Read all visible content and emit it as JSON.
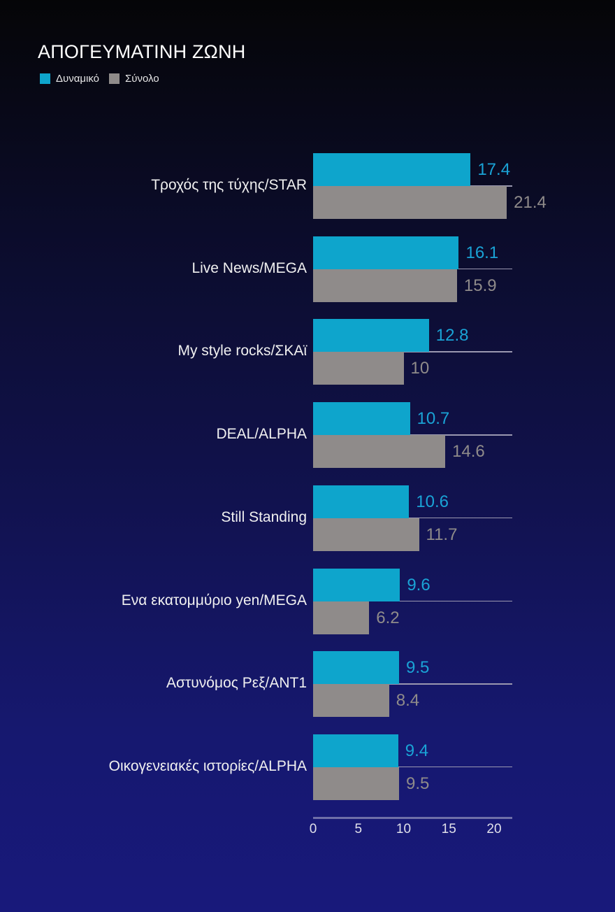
{
  "title": "ΑΠΟΓΕΥΜΑΤΙΝΗ ΖΩΝΗ",
  "legend": [
    {
      "label": "Δυναμικό",
      "color": "#0ea5cc"
    },
    {
      "label": "Σύνολο",
      "color": "#8f8b8a"
    }
  ],
  "axis": {
    "ticks": [
      "0",
      "5",
      "10",
      "15",
      "20"
    ]
  },
  "chart_data": {
    "type": "bar",
    "orientation": "horizontal",
    "title": "ΑΠΟΓΕΥΜΑΤΙΝΗ ΖΩΝΗ",
    "xlabel": "",
    "ylabel": "",
    "categories": [
      "Τροχός της τύχης/STAR",
      "Live News/MEGA",
      "My style rocks/ΣΚΑϊ",
      "DEAL/ALPHA",
      "Still Standing",
      "Ενα εκατομμύριο yen/MEGA",
      "Αστυνόμος Ρεξ/ANT1",
      "Οικογενειακές ιστορίες/ALPHA"
    ],
    "series": [
      {
        "name": "Δυναμικό",
        "color": "#0ea5cc",
        "values": [
          17.4,
          16.1,
          12.8,
          10.7,
          10.6,
          9.6,
          9.5,
          9.4
        ]
      },
      {
        "name": "Σύνολο",
        "color": "#8f8b8a",
        "values": [
          21.4,
          15.9,
          10,
          14.6,
          11.7,
          6.2,
          8.4,
          9.5
        ]
      }
    ],
    "value_labels": {
      "Δυναμικό": [
        "17.4",
        "16.1",
        "12.8",
        "10.7",
        "10.6",
        "9.6",
        "9.5",
        "9.4"
      ],
      "Σύνολο": [
        "21.4",
        "15.9",
        "10",
        "14.6",
        "11.7",
        "6.2",
        "8.4",
        "9.5"
      ]
    },
    "xlim": [
      0,
      22
    ],
    "xticks": [
      0,
      5,
      10,
      15,
      20
    ],
    "grid": false,
    "legend_position": "top-left"
  }
}
